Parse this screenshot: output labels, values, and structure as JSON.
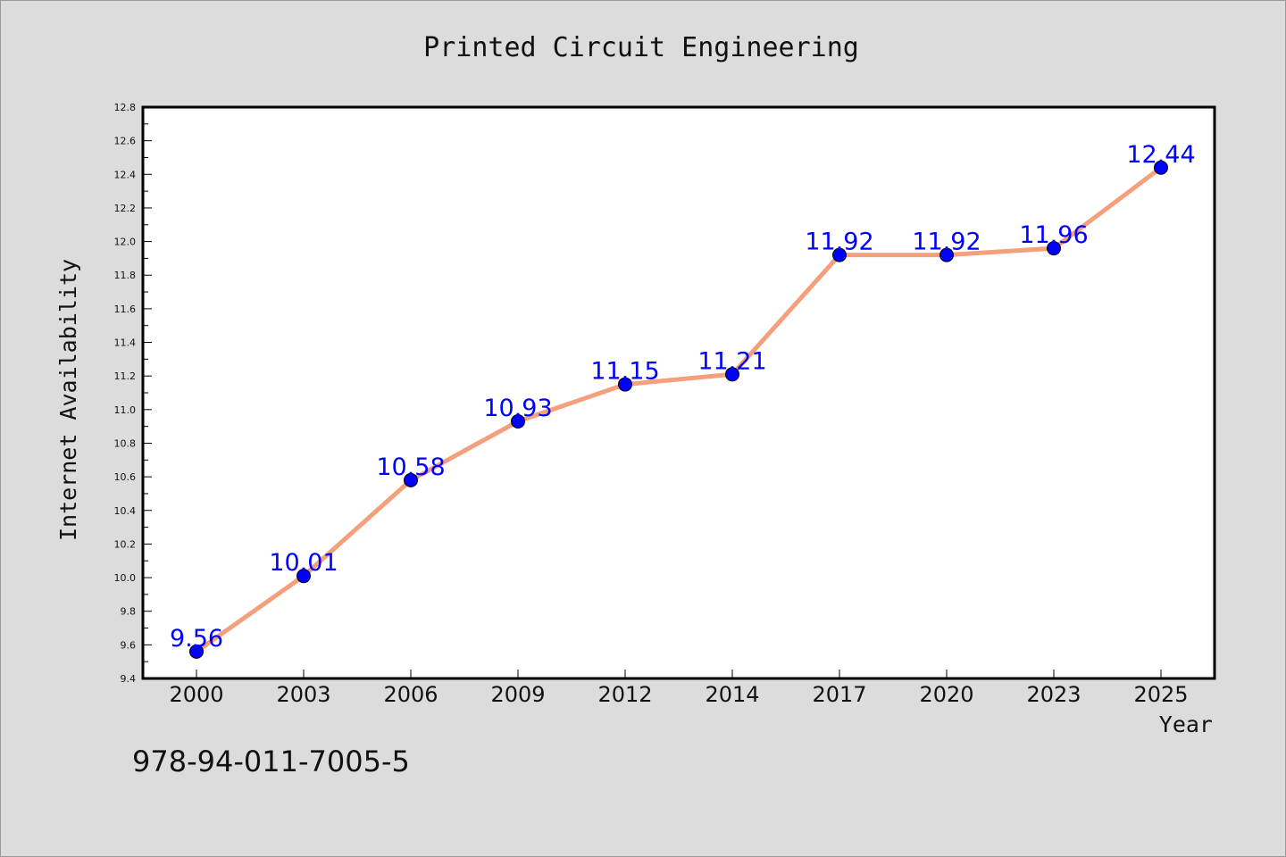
{
  "chart_data": {
    "type": "line",
    "title": "Printed Circuit Engineering",
    "xlabel": "Year",
    "ylabel": "Internet Availability",
    "categories": [
      "2000",
      "2003",
      "2006",
      "2009",
      "2012",
      "2014",
      "2017",
      "2020",
      "2023",
      "2025"
    ],
    "values": [
      9.56,
      10.01,
      10.58,
      10.93,
      11.15,
      11.21,
      11.92,
      11.92,
      11.96,
      12.44
    ],
    "data_labels": [
      "9.56",
      "10.01",
      "10.58",
      "10.93",
      "11.15",
      "11.21",
      "11.92",
      "11.92",
      "11.96",
      "12.44"
    ],
    "ylim": [
      9.4,
      12.8
    ],
    "yticks": [
      9.4,
      9.6,
      9.8,
      10.0,
      10.2,
      10.4,
      10.6,
      10.8,
      11.0,
      11.2,
      11.4,
      11.6,
      11.8,
      12.0,
      12.2,
      12.4,
      12.6,
      12.8
    ],
    "ytick_labels": [
      "9.4",
      "9.6",
      "9.8",
      "10.0",
      "10.2",
      "10.4",
      "10.6",
      "10.8",
      "11.0",
      "11.2",
      "11.4",
      "11.6",
      "11.8",
      "12.0",
      "12.2",
      "12.4",
      "12.6",
      "12.8"
    ],
    "grid": false,
    "legend": "none",
    "colors": {
      "line": "#f4a07c",
      "marker": "#0000ff",
      "data_label": "#0000ff",
      "plot_background": "#ffffff",
      "figure_background": "#dcdcdc"
    }
  },
  "footnote": "978-94-011-7005-5"
}
